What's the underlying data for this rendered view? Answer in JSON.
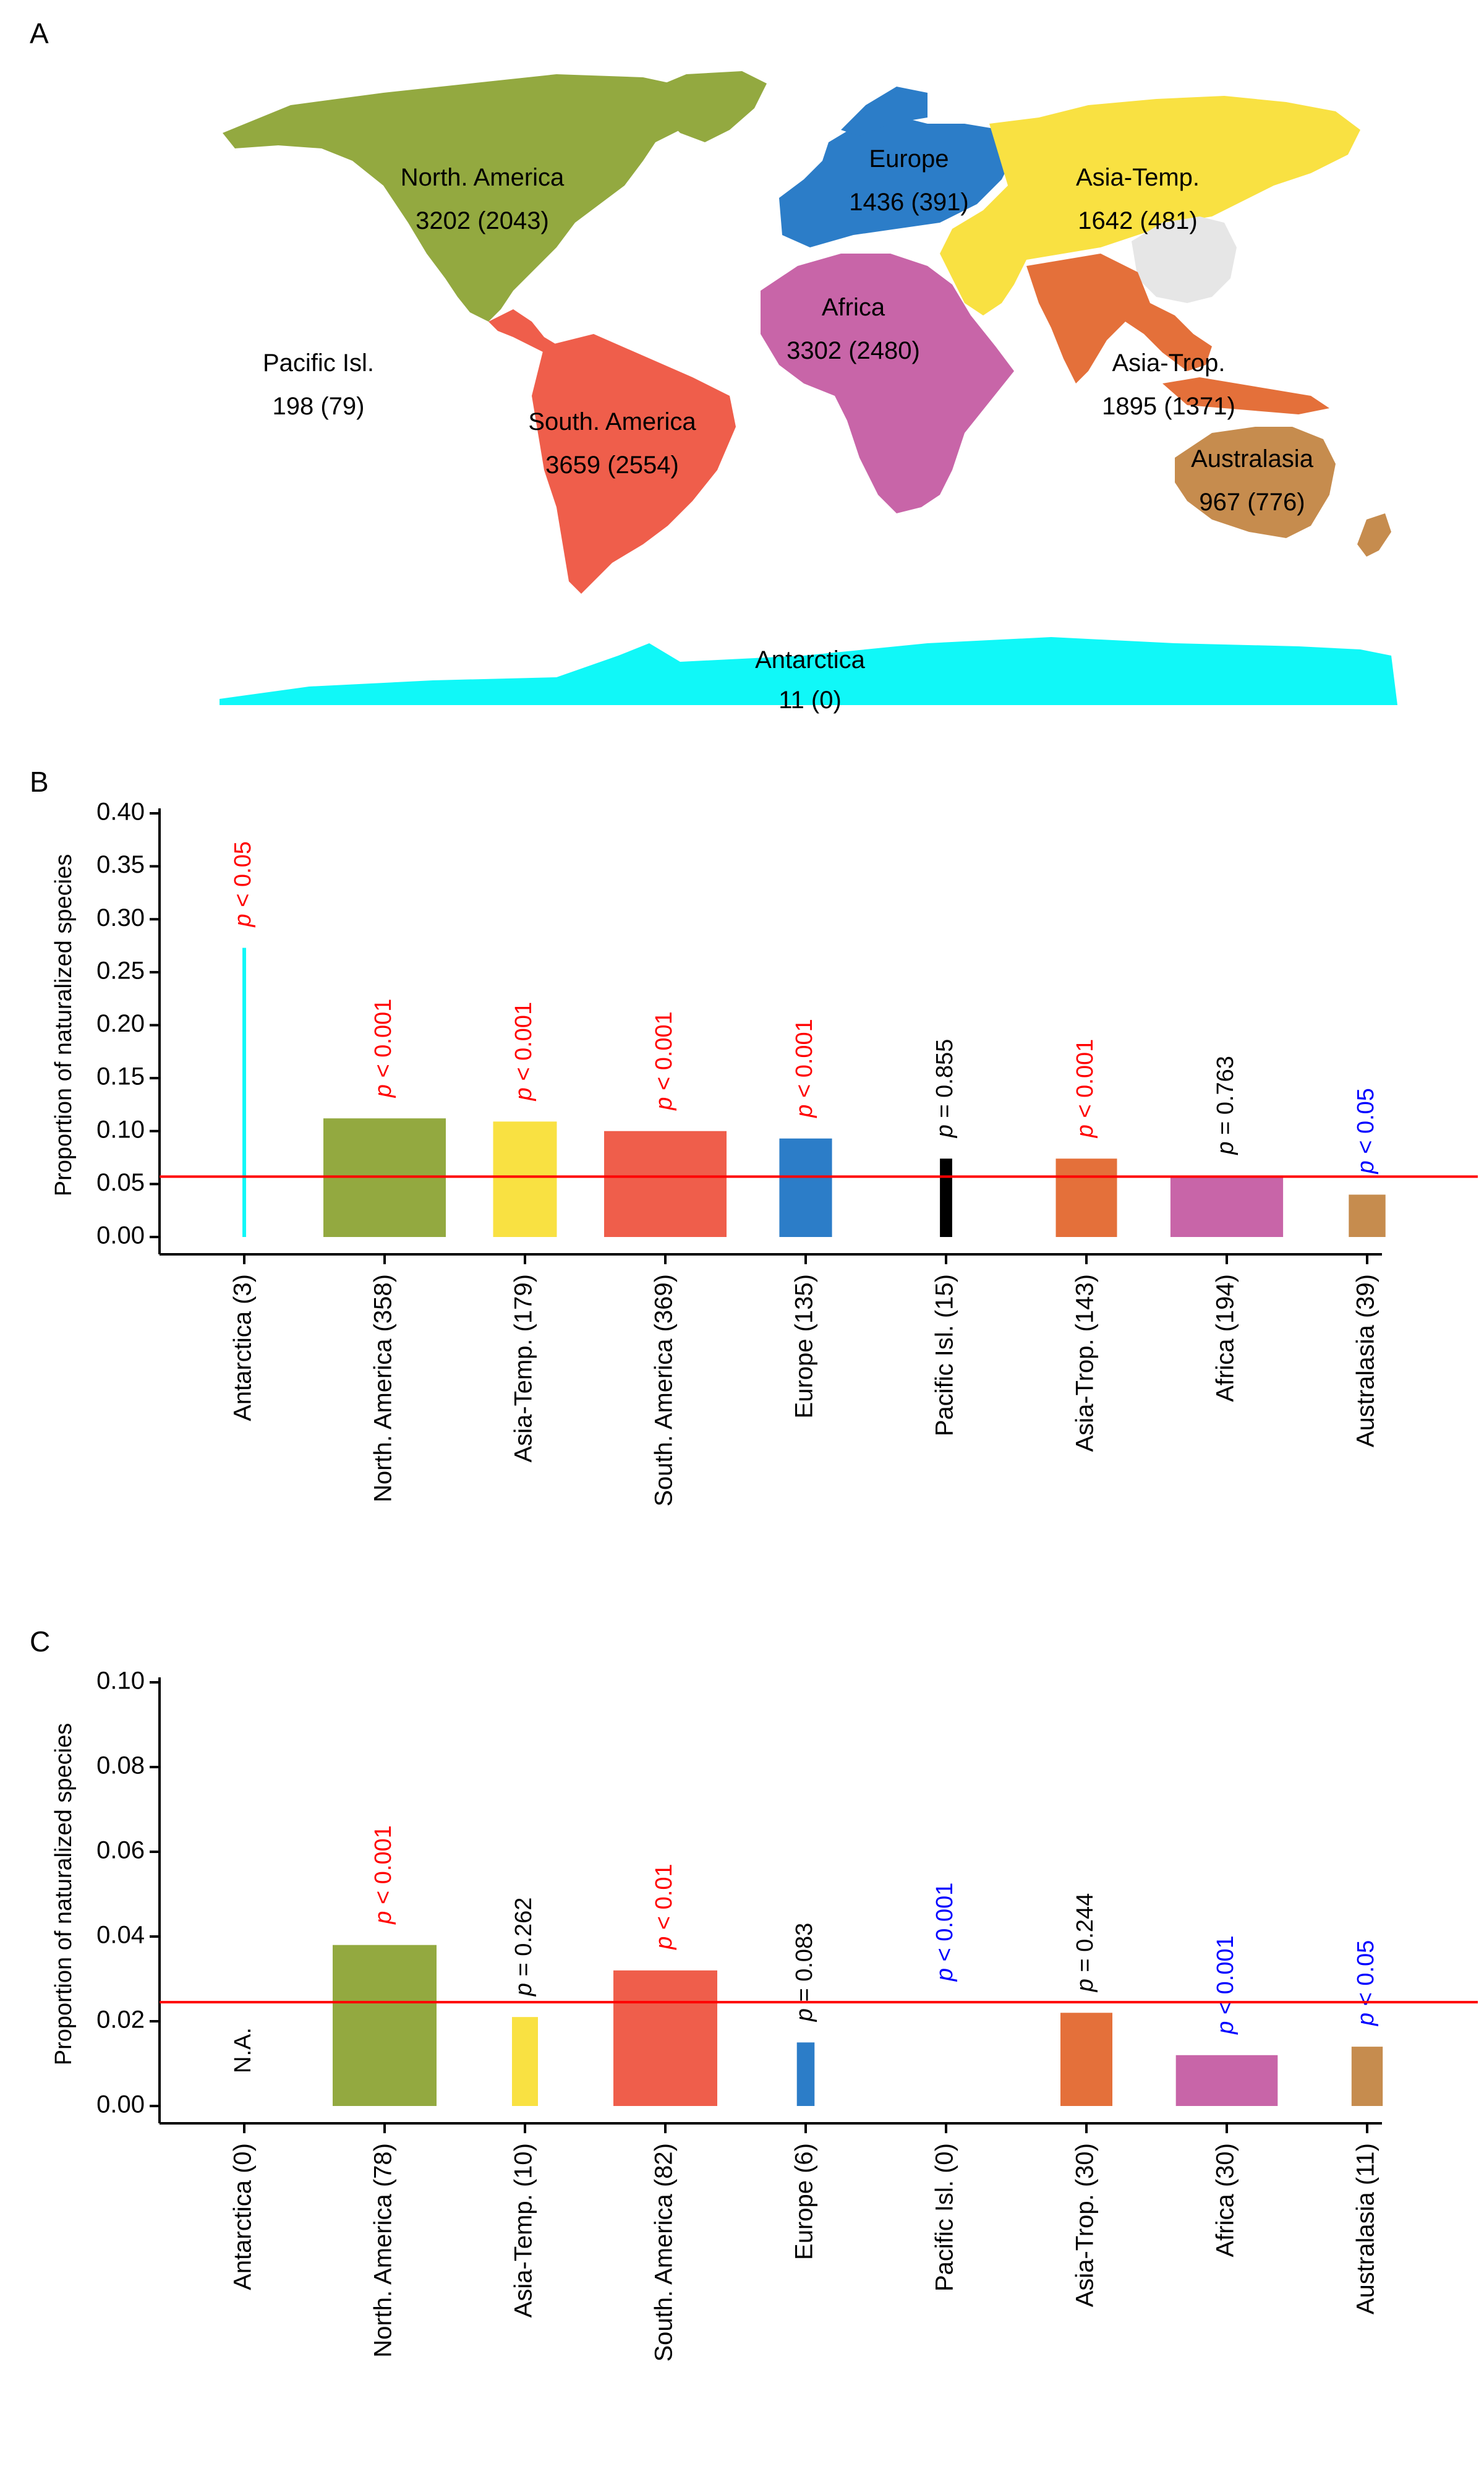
{
  "map": {
    "panel_letter": "A",
    "regions": [
      {
        "id": "north-america",
        "name": "North. America",
        "count": "3202 (2043)",
        "color": "#93A940"
      },
      {
        "id": "europe",
        "name": "Europe",
        "count": "1436 (391)",
        "color": "#2C7DC8"
      },
      {
        "id": "asia-temp",
        "name": "Asia-Temp.",
        "count": "1642 (481)",
        "color": "#F9E142"
      },
      {
        "id": "africa",
        "name": "Africa",
        "count": "3302 (2480)",
        "color": "#C865A8"
      },
      {
        "id": "asia-trop",
        "name": "Asia-Trop.",
        "count": "1895 (1371)",
        "color": "#E4703A"
      },
      {
        "id": "pacific-isl",
        "name": "Pacific Isl.",
        "count": "198 (79)",
        "color": "#000000"
      },
      {
        "id": "south-america",
        "name": "South. America",
        "count": "3659 (2554)",
        "color": "#EF5E4B"
      },
      {
        "id": "australasia",
        "name": "Australasia",
        "count": "967 (776)",
        "color": "#C68C4E"
      },
      {
        "id": "antarctica",
        "name": "Antarctica",
        "count": "11 (0)",
        "color": "#10F8F8"
      }
    ],
    "unassigned_color": "#E6E6E6"
  },
  "chart_data": [
    {
      "panel_letter": "B",
      "type": "bar",
      "ylabel": "Proportion of naturalized species",
      "ylim": [
        0,
        0.4
      ],
      "yticks": [
        "0.00",
        "0.05",
        "0.10",
        "0.15",
        "0.20",
        "0.25",
        "0.30",
        "0.35",
        "0.40"
      ],
      "reference_line": 0.057,
      "reference_color": "#FF0000",
      "categories": [
        "Antarctica (3)",
        "North. America (358)",
        "Asia-Temp. (179)",
        "South. America (369)",
        "Europe (135)",
        "Pacific Isl. (15)",
        "Asia-Trop. (143)",
        "Africa (194)",
        "Australasia (39)"
      ],
      "values": [
        0.273,
        0.112,
        0.109,
        0.1,
        0.093,
        0.074,
        0.074,
        0.058,
        0.04
      ],
      "bar_widths": [
        0.03,
        1.0,
        0.52,
        1.0,
        0.43,
        0.1,
        0.5,
        0.92,
        0.3
      ],
      "colors": [
        "#10F8F8",
        "#93A940",
        "#F9E142",
        "#EF5E4B",
        "#2C7DC8",
        "#000000",
        "#E4703A",
        "#C865A8",
        "#C68C4E"
      ],
      "p_labels": [
        "p < 0.05",
        "p < 0.001",
        "p < 0.001",
        "p < 0.001",
        "p < 0.001",
        "p = 0.855",
        "p < 0.001",
        "p = 0.763",
        "p < 0.05"
      ],
      "p_colors": [
        "#FF0000",
        "#FF0000",
        "#FF0000",
        "#FF0000",
        "#FF0000",
        "#000000",
        "#FF0000",
        "#000000",
        "#0000FF"
      ]
    },
    {
      "panel_letter": "C",
      "type": "bar",
      "ylabel": "Proportion of naturalized species",
      "ylim": [
        0,
        0.1
      ],
      "yticks": [
        "0.00",
        "0.02",
        "0.04",
        "0.06",
        "0.08",
        "0.10"
      ],
      "reference_line": 0.0245,
      "reference_color": "#FF0000",
      "categories": [
        "Antarctica (0)",
        "North. America (78)",
        "Asia-Temp. (10)",
        "South. America (82)",
        "Europe (6)",
        "Pacific Isl. (0)",
        "Asia-Trop. (30)",
        "Africa (30)",
        "Australasia (11)"
      ],
      "values": [
        0,
        0.038,
        0.021,
        0.032,
        0.015,
        0,
        0.022,
        0.012,
        0.014
      ],
      "bar_widths": [
        0,
        1.0,
        0.25,
        1.0,
        0.17,
        0,
        0.5,
        0.98,
        0.3
      ],
      "colors": [
        "#10F8F8",
        "#93A940",
        "#F9E142",
        "#EF5E4B",
        "#2C7DC8",
        "#000000",
        "#E4703A",
        "#C865A8",
        "#C68C4E"
      ],
      "p_labels": [
        "",
        "p < 0.001",
        "p = 0.262",
        "p < 0.01",
        "p = 0.083",
        "p < 0.001",
        "p = 0.244",
        "p < 0.001",
        "p < 0.05"
      ],
      "p_colors": [
        "#000000",
        "#FF0000",
        "#000000",
        "#FF0000",
        "#000000",
        "#0000FF",
        "#000000",
        "#0000FF",
        "#0000FF"
      ],
      "na_label": "N.A."
    }
  ]
}
